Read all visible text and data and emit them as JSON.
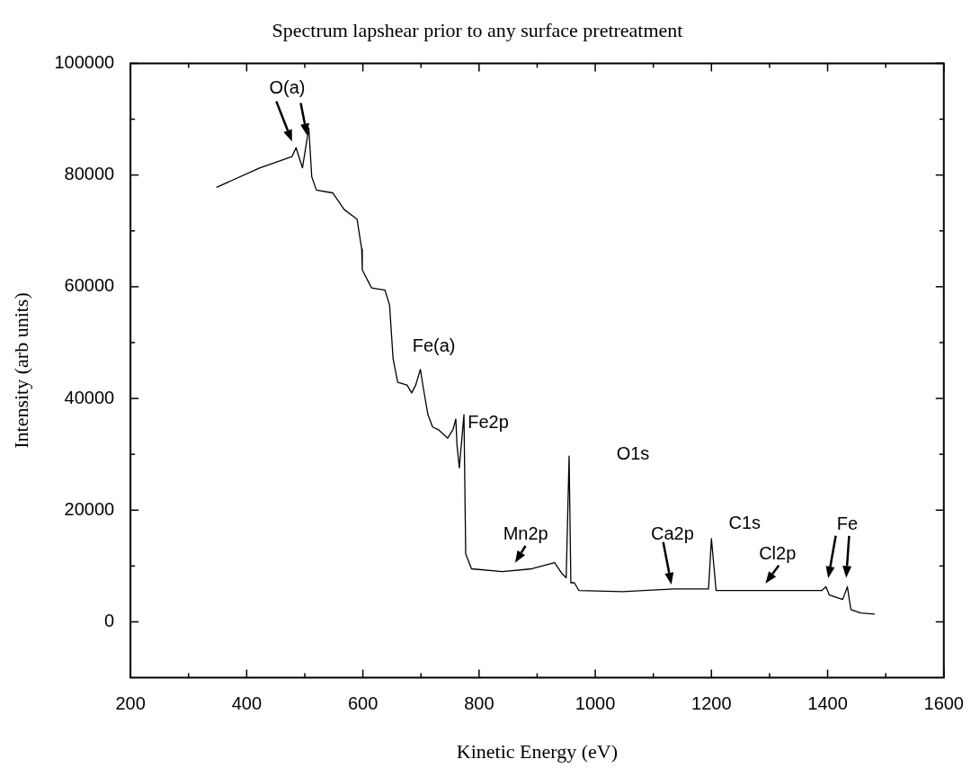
{
  "chart_data": {
    "type": "line",
    "title": "Spectrum lapshear prior to any surface pretreatment",
    "xlabel": "Kinetic Energy (eV)",
    "ylabel": "Intensity (arb units)",
    "x": [
      348,
      423,
      478,
      485,
      496,
      507,
      512,
      520,
      548,
      568,
      590,
      598,
      599,
      615,
      638,
      646,
      652,
      660,
      676,
      684,
      691,
      699,
      704,
      712,
      720,
      730,
      746,
      755,
      760,
      762,
      766,
      774,
      777,
      787,
      840,
      891,
      930,
      943,
      950,
      955,
      958,
      964,
      972,
      1047,
      1136,
      1195,
      1200,
      1208,
      1292,
      1390,
      1397,
      1403,
      1426,
      1434,
      1440,
      1457,
      1481
    ],
    "series": [
      {
        "color": "#000000",
        "values": [
          77800,
          81300,
          83300,
          84900,
          81300,
          88400,
          79700,
          77300,
          76800,
          73800,
          72100,
          66700,
          63000,
          59800,
          59400,
          56700,
          47100,
          42900,
          42400,
          41000,
          42400,
          45200,
          41900,
          37100,
          34900,
          34400,
          32900,
          34400,
          36300,
          31700,
          27600,
          37100,
          12200,
          9500,
          9000,
          9500,
          10600,
          8600,
          7900,
          29700,
          7000,
          7000,
          5600,
          5400,
          5900,
          5900,
          14900,
          5600,
          5600,
          5600,
          6300,
          4800,
          4000,
          6300,
          2200,
          1600,
          1400
        ]
      }
    ],
    "xlim": [
      200,
      1600
    ],
    "xticks": [
      200,
      400,
      600,
      800,
      1000,
      1200,
      1400,
      1600
    ],
    "ylim": [
      -10000,
      100000
    ],
    "yticks": [
      0,
      20000,
      40000,
      60000,
      80000,
      100000
    ],
    "grid": false,
    "legend": false,
    "marker": "none",
    "line_style": "solid",
    "annotations": [
      {
        "text": "O(a)",
        "x": 507,
        "y": 88400
      },
      {
        "text": "Fe(a)",
        "x": 699,
        "y": 45200
      },
      {
        "text": "Fe2p",
        "x": 774,
        "y": 37100
      },
      {
        "text": "O1s",
        "x": 955,
        "y": 29700
      },
      {
        "text": "Mn2p",
        "x": 840,
        "y": 9000
      },
      {
        "text": "Ca2p",
        "x": 1136,
        "y": 5900
      },
      {
        "text": "C1s",
        "x": 1200,
        "y": 14900
      },
      {
        "text": "Cl2p",
        "x": 1292,
        "y": 5600
      },
      {
        "text": "Fe",
        "x": 1434,
        "y": 6300
      }
    ]
  }
}
